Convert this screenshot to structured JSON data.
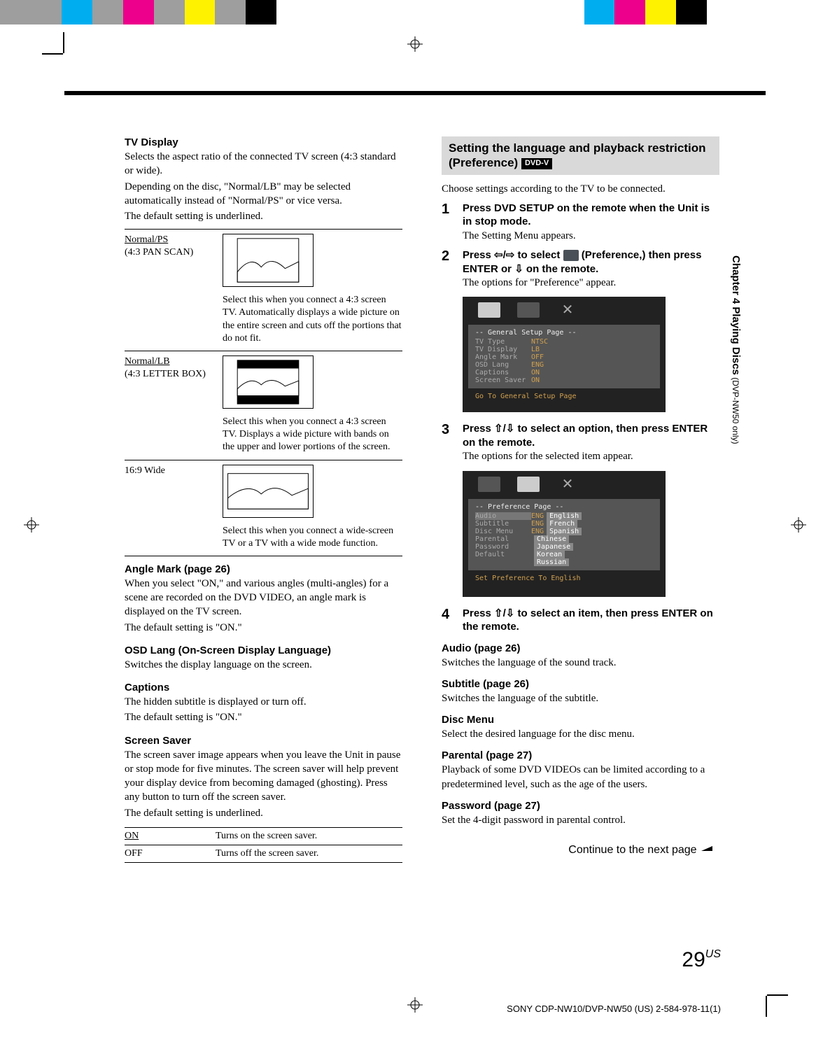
{
  "colorBars": [
    "#9e9e9e",
    "#9e9e9e",
    "#00aeef",
    "#9e9e9e",
    "#ec008c",
    "#9e9e9e",
    "#fff200",
    "#9e9e9e",
    "#000000",
    "#ffffff",
    "#ffffff",
    "#ffffff",
    "#ffffff",
    "#ffffff",
    "#ffffff",
    "#ffffff",
    "#ffffff",
    "#ffffff",
    "#ffffff",
    "#00aeef",
    "#ec008c",
    "#fff200",
    "#000000",
    "#ffffff",
    "#ffffff",
    "#ffffff",
    "#ffffff"
  ],
  "leftCol": {
    "tvDisplay": {
      "title": "TV Display",
      "p1": "Selects the aspect ratio of the connected TV screen (4:3 standard or wide).",
      "p2": "Depending on the disc, \"Normal/LB\" may be selected automatically instead of \"Normal/PS\" or vice versa.",
      "p3": "The default setting is underlined.",
      "options": [
        {
          "label": "Normal/PS",
          "sub": "(4:3 PAN SCAN)",
          "underline": true,
          "desc": "Select this when you connect a 4:3 screen TV. Automatically displays a wide picture on the entire screen and cuts off the portions that do not fit."
        },
        {
          "label": "Normal/LB",
          "sub": "(4:3 LETTER BOX)",
          "underline": true,
          "desc": "Select this when you connect a 4:3 screen TV. Displays a wide picture with bands on the upper and lower portions of the screen."
        },
        {
          "label": "16:9 Wide",
          "sub": "",
          "underline": false,
          "desc": "Select this when you connect a wide-screen TV or a TV with a wide mode function."
        }
      ]
    },
    "angleMark": {
      "title": "Angle Mark (page 26)",
      "body": "When you select \"ON,\" and various angles (multi-angles) for a scene are recorded on the DVD VIDEO, an angle mark is displayed on the TV screen.",
      "default": "The default setting is \"ON.\""
    },
    "osdLang": {
      "title": "OSD Lang (On-Screen Display Language)",
      "body": "Switches the display language on the screen."
    },
    "captions": {
      "title": "Captions",
      "body": "The hidden subtitle is displayed or turn off.",
      "default": "The default setting is \"ON.\""
    },
    "screenSaver": {
      "title": "Screen Saver",
      "body": "The screen saver image appears when you leave the Unit in pause or stop mode for five minutes. The screen saver will help prevent your display device from becoming damaged (ghosting). Press any button to turn off the screen saver.",
      "default": "The default setting is underlined.",
      "rows": [
        {
          "label": "ON",
          "underline": true,
          "desc": "Turns on the screen saver."
        },
        {
          "label": "OFF",
          "underline": false,
          "desc": "Turns off the screen saver."
        }
      ]
    }
  },
  "rightCol": {
    "heading": "Setting the language and playback restriction (Preference)",
    "badge": "DVD-V",
    "intro": "Choose settings according to the TV to be connected.",
    "steps": [
      {
        "num": "1",
        "bold": "Press DVD SETUP on the remote when the Unit is in stop mode.",
        "plain": "The Setting Menu appears."
      },
      {
        "num": "2",
        "bold_pre": "Press ",
        "bold_mid": " to select ",
        "bold_post": " (Preference,) then press ENTER or ",
        "bold_end": " on the remote.",
        "plain": "The options for \"Preference\" appear."
      },
      {
        "num": "3",
        "bold_pre": "Press ",
        "bold_post": " to select an option, then press ENTER on the remote.",
        "plain": "The options for the selected item appear."
      },
      {
        "num": "4",
        "bold_pre": "Press ",
        "bold_post": " to select an item, then press ENTER on the remote.",
        "plain": ""
      }
    ],
    "shot1": {
      "header": "-- General Setup Page --",
      "rows": [
        {
          "k": "TV Type",
          "v": "NTSC"
        },
        {
          "k": "TV Display",
          "v": "LB"
        },
        {
          "k": "Angle Mark",
          "v": "OFF"
        },
        {
          "k": "OSD Lang",
          "v": "ENG"
        },
        {
          "k": "Captions",
          "v": "ON"
        },
        {
          "k": "Screen Saver",
          "v": "ON"
        }
      ],
      "hint": "Go To General Setup Page"
    },
    "shot2": {
      "header": "-- Preference Page --",
      "rows": [
        {
          "k": "Audio",
          "v": "ENG",
          "r": "English"
        },
        {
          "k": "Subtitle",
          "v": "ENG",
          "r": "French"
        },
        {
          "k": "Disc Menu",
          "v": "ENG",
          "r": "Spanish"
        },
        {
          "k": "Parental",
          "v": "",
          "r": "Chinese"
        },
        {
          "k": "Password",
          "v": "",
          "r": "Japanese"
        },
        {
          "k": "Default",
          "v": "",
          "r": "Korean"
        },
        {
          "k": "",
          "v": "",
          "r": "Russian"
        }
      ],
      "hint": "Set Preference To English"
    },
    "subs": [
      {
        "title": "Audio (page 26)",
        "body": "Switches the language of the sound track."
      },
      {
        "title": "Subtitle (page 26)",
        "body": "Switches the language of the subtitle."
      },
      {
        "title": "Disc Menu",
        "body": "Select the desired language for the disc menu."
      },
      {
        "title": "Parental (page 27)",
        "body": "Playback of some DVD VIDEOs can be limited according to a predetermined level, such as the age of the users."
      },
      {
        "title": "Password (page 27)",
        "body": "Set the 4-digit password in parental control."
      }
    ],
    "continue": "Continue to the next page"
  },
  "sideTab": {
    "main": "Chapter 4  Playing Discs",
    "sub": " (DVP-NW50 only)"
  },
  "pageNum": "29",
  "pageNumSup": "US",
  "footer": "SONY CDP-NW10/DVP-NW50 (US) 2-584-978-11(1)"
}
